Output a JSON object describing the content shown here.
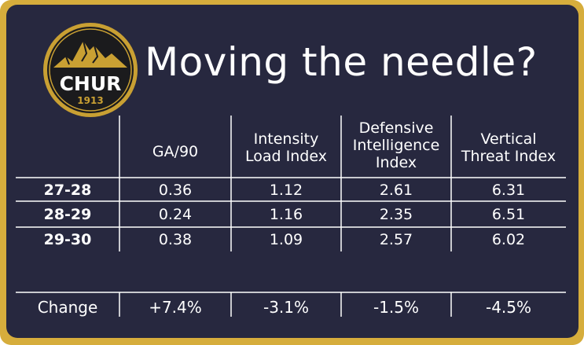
{
  "title": "Moving the needle?",
  "logo": {
    "text": "CHUR",
    "year": "1913"
  },
  "colors": {
    "background": "#27283f",
    "border": "#d6ad3c",
    "text": "#ffffff"
  },
  "table": {
    "headers": [
      "GA/90",
      "Intensity\nLoad Index",
      "Defensive\nIntelligence\nIndex",
      "Vertical\nThreat Index"
    ],
    "rows": [
      {
        "label": "27-28",
        "values": [
          "0.36",
          "1.12",
          "2.61",
          "6.31"
        ]
      },
      {
        "label": "28-29",
        "values": [
          "0.24",
          "1.16",
          "2.35",
          "6.51"
        ]
      },
      {
        "label": "29-30",
        "values": [
          "0.38",
          "1.09",
          "2.57",
          "6.02"
        ]
      }
    ],
    "change": {
      "label": "Change",
      "values": [
        "+7.4%",
        "-3.1%",
        "-1.5%",
        "-4.5%"
      ]
    }
  }
}
